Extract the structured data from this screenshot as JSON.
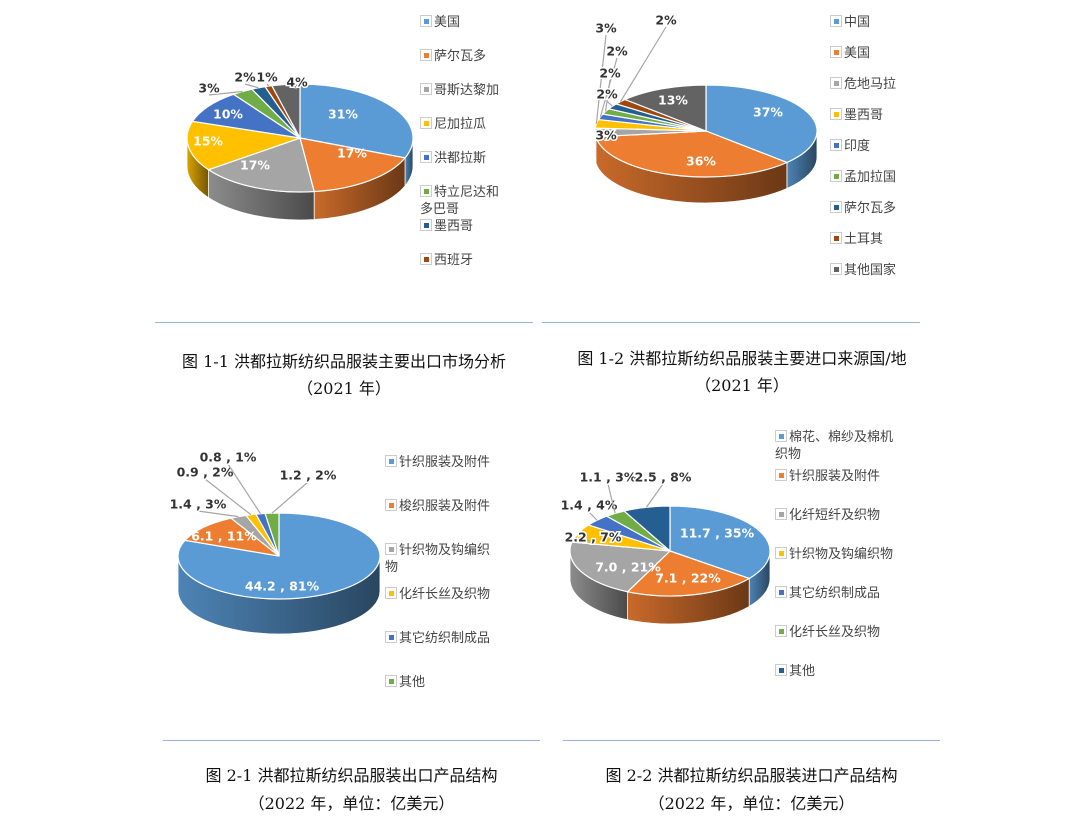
{
  "colors": {
    "blue": "#5b9bd5",
    "orange": "#ed7d31",
    "gray": "#a5a5a5",
    "yellow": "#ffc000",
    "royal": "#4472c4",
    "green": "#70ad47",
    "navy": "#255e91",
    "brown": "#9e480e",
    "darkgray": "#636363"
  },
  "chart_data": [
    {
      "type": "pie",
      "style": "3d",
      "title": "",
      "caption_line1": "图 1-1 洪都拉斯纺织品服装主要出口市场分析",
      "caption_line2": "（2021 年）",
      "categories": [
        "美国",
        "萨尔瓦多",
        "哥斯达黎加",
        "尼加拉瓜",
        "洪都拉斯",
        "特立尼达和多巴哥",
        "墨西哥",
        "西班牙",
        ""
      ],
      "legend_labels": [
        "美国",
        "萨尔瓦多",
        "哥斯达黎加",
        "尼加拉瓜",
        "洪都拉斯",
        "特立尼达和\n多巴哥",
        "墨西哥",
        "西班牙"
      ],
      "values": [
        31,
        17,
        17,
        15,
        10,
        3,
        2,
        1,
        4
      ],
      "labels": [
        "31%",
        "17%",
        "17%",
        "15%",
        "10%",
        "3%",
        "2%",
        "1%",
        "4%"
      ],
      "colors": [
        "#5b9bd5",
        "#ed7d31",
        "#a5a5a5",
        "#ffc000",
        "#4472c4",
        "#70ad47",
        "#255e91",
        "#9e480e",
        "#636363"
      ],
      "legend_position": "right"
    },
    {
      "type": "pie",
      "style": "3d",
      "title": "",
      "caption_line1": "图 1-2  洪都拉斯纺织品服装主要进口来源国/地",
      "caption_line2": "（2021 年）",
      "categories": [
        "中国",
        "美国",
        "危地马拉",
        "墨西哥",
        "印度",
        "孟加拉国",
        "萨尔瓦多",
        "土耳其",
        "其他国家"
      ],
      "legend_labels": [
        "中国",
        "美国",
        "危地马拉",
        "墨西哥",
        "印度",
        "孟加拉国",
        "萨尔瓦多",
        "土耳其",
        "其他国家"
      ],
      "values": [
        37,
        36,
        3,
        3,
        2,
        2,
        2,
        2,
        13
      ],
      "labels": [
        "37%",
        "36%",
        "3%",
        "3%",
        "2%",
        "2%",
        "2%",
        "2%",
        "13%"
      ],
      "colors": [
        "#5b9bd5",
        "#ed7d31",
        "#a5a5a5",
        "#ffc000",
        "#4472c4",
        "#70ad47",
        "#255e91",
        "#9e480e",
        "#636363"
      ],
      "legend_position": "right"
    },
    {
      "type": "pie",
      "style": "3d",
      "title": "",
      "caption_line1": "图 2-1  洪都拉斯纺织品服装出口产品结构",
      "caption_line2": "（2022 年，单位：亿美元）",
      "categories": [
        "针织服装及附件",
        "梭织服装及附件",
        "针织物及钩编织物",
        "化纤长丝及织物",
        "其它纺织制成品",
        "其他"
      ],
      "legend_labels": [
        "针织服装及附件",
        "梭织服装及附件",
        "针织物及钩编织\n物",
        "化纤长丝及织物",
        "其它纺织制成品",
        "其他"
      ],
      "values": [
        44.2,
        6.1,
        1.4,
        0.9,
        0.8,
        1.2
      ],
      "percents": [
        81,
        11,
        3,
        2,
        1,
        2
      ],
      "labels": [
        "44.2 , 81%",
        "6.1 , 11%",
        "1.4 , 3%",
        "0.9 , 2%",
        "0.8 , 1%",
        "1.2 , 2%"
      ],
      "colors": [
        "#5b9bd5",
        "#ed7d31",
        "#a5a5a5",
        "#ffc000",
        "#4472c4",
        "#70ad47"
      ],
      "legend_position": "right"
    },
    {
      "type": "pie",
      "style": "3d",
      "title": "",
      "caption_line1": "图 2-2  洪都拉斯纺织品服装进口产品结构",
      "caption_line2": "（2022 年，单位：亿美元）",
      "categories": [
        "棉花、棉纱及棉机织物",
        "针织服装及附件",
        "化纤短纤及织物",
        "针织物及钩编织物",
        "其它纺织制成品",
        "化纤长丝及织物",
        "其他"
      ],
      "legend_labels": [
        "棉花、棉纱及棉机\n织物",
        "针织服装及附件",
        "化纤短纤及织物",
        "针织物及钩编织物",
        "其它纺织制成品",
        "化纤长丝及织物",
        "其他"
      ],
      "values": [
        11.7,
        7.1,
        7.0,
        2.2,
        1.4,
        1.1,
        2.5
      ],
      "percents": [
        35,
        22,
        21,
        7,
        4,
        3,
        8
      ],
      "labels": [
        "11.7 , 35%",
        "7.1 , 22%",
        "7.0 , 21%",
        "2.2 , 7%",
        "1.4 , 4%",
        "1.1 , 3%",
        "2.5 , 8%"
      ],
      "colors": [
        "#5b9bd5",
        "#ed7d31",
        "#a5a5a5",
        "#ffc000",
        "#4472c4",
        "#70ad47",
        "#255e91"
      ],
      "legend_position": "right"
    }
  ]
}
